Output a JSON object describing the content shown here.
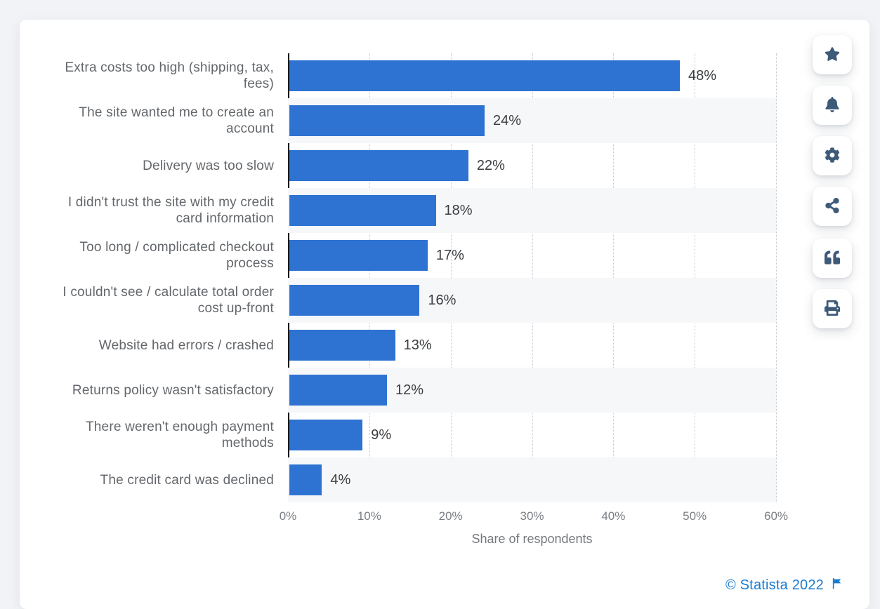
{
  "page": {
    "background": "#f1f3f6"
  },
  "chart_data": {
    "type": "bar",
    "orientation": "horizontal",
    "categories": [
      "Extra costs too high (shipping, tax, fees)",
      "The site wanted me to create an account",
      "Delivery was too slow",
      "I didn't trust the site with my credit card information",
      "Too long / complicated checkout process",
      "I couldn't see / calculate total order cost up-front",
      "Website had errors / crashed",
      "Returns policy wasn't satisfactory",
      "There weren't enough payment methods",
      "The credit card was declined"
    ],
    "values": [
      48,
      24,
      22,
      18,
      17,
      16,
      13,
      12,
      9,
      4
    ],
    "value_labels": [
      "48%",
      "24%",
      "22%",
      "18%",
      "17%",
      "16%",
      "13%",
      "12%",
      "9%",
      "4%"
    ],
    "xlabel": "Share of respondents",
    "x_ticks": [
      "0%",
      "10%",
      "20%",
      "30%",
      "40%",
      "50%",
      "60%"
    ],
    "xlim": [
      0,
      60
    ],
    "grid": "vertical-dotted",
    "legend": "none",
    "row_striping": "alternate even rows light gray",
    "bar_color": "#2e73d2"
  },
  "toolbar": {
    "buttons": [
      {
        "name": "favorite",
        "icon": "star-icon"
      },
      {
        "name": "notifications",
        "icon": "bell-icon"
      },
      {
        "name": "settings",
        "icon": "gear-icon"
      },
      {
        "name": "share",
        "icon": "share-icon"
      },
      {
        "name": "cite",
        "icon": "quote-icon"
      },
      {
        "name": "print",
        "icon": "printer-icon"
      }
    ]
  },
  "footer": {
    "copyright": "© Statista 2022",
    "flag": "report-flag-icon"
  },
  "colors": {
    "bar": "#2e73d2",
    "icon": "#3d5a78",
    "link_blue": "#1a7bd0",
    "category_text": "#63676b",
    "value_text": "#3a3d40",
    "tick_text": "#7a7e83",
    "stripe": "#f6f7f9",
    "page_background": "#f1f3f6"
  }
}
